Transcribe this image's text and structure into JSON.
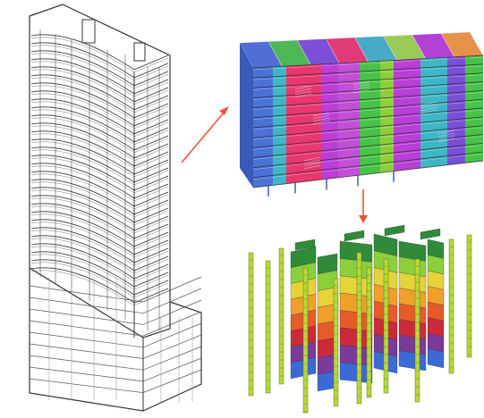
{
  "figure": {
    "panels": [
      {
        "id": "tower",
        "icon": "tower-wireframe-icon"
      },
      {
        "id": "floor-model",
        "icon": "colored-floor-mesh-icon"
      },
      {
        "id": "walls-columns",
        "icon": "colored-wall-column-icon"
      }
    ],
    "arrows": [
      {
        "from": "tower",
        "to": "floor-model",
        "color": "#e8553a"
      },
      {
        "from": "floor-model",
        "to": "walls-columns",
        "color": "#e8553a"
      }
    ],
    "palette": {
      "floor": [
        "#4a72d8",
        "#e8386e",
        "#b93fd6",
        "#48c34a",
        "#3fb6c4",
        "#f09a3a",
        "#7a4fd8",
        "#9ad84a"
      ],
      "wall": [
        "#2f8a3a",
        "#8ccf3a",
        "#e6d33a",
        "#f0a02a",
        "#e85a2a",
        "#cc2a3a",
        "#7a3a9a",
        "#3a6ad8"
      ],
      "column": "#b8d83a"
    }
  }
}
